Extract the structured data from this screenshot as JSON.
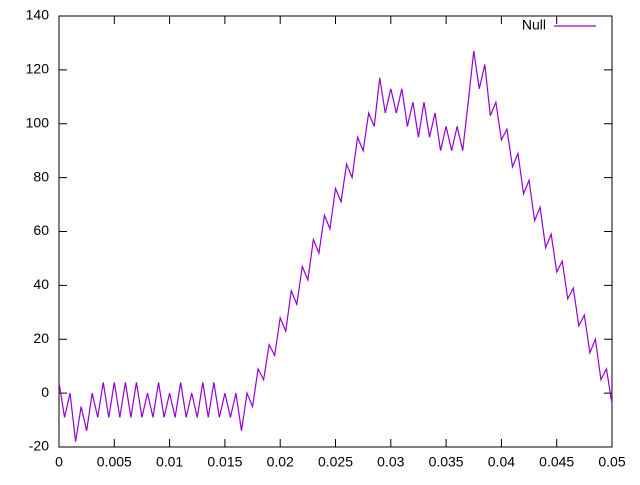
{
  "chart_data": {
    "type": "line",
    "x": [
      0,
      0.0005,
      0.001,
      0.0015,
      0.002,
      0.0025,
      0.003,
      0.0035,
      0.004,
      0.0045,
      0.005,
      0.0055,
      0.006,
      0.0065,
      0.007,
      0.0075,
      0.008,
      0.0085,
      0.009,
      0.0095,
      0.01,
      0.0105,
      0.011,
      0.0115,
      0.012,
      0.0125,
      0.013,
      0.0135,
      0.014,
      0.0145,
      0.015,
      0.0155,
      0.016,
      0.0165,
      0.017,
      0.0175,
      0.018,
      0.0185,
      0.019,
      0.0195,
      0.02,
      0.0205,
      0.021,
      0.0215,
      0.022,
      0.0225,
      0.023,
      0.0235,
      0.024,
      0.0245,
      0.025,
      0.0255,
      0.026,
      0.0265,
      0.027,
      0.0275,
      0.028,
      0.0285,
      0.029,
      0.0295,
      0.03,
      0.0305,
      0.031,
      0.0315,
      0.032,
      0.0325,
      0.033,
      0.0335,
      0.034,
      0.0345,
      0.035,
      0.0355,
      0.036,
      0.0365,
      0.037,
      0.0375,
      0.038,
      0.0385,
      0.039,
      0.0395,
      0.04,
      0.0405,
      0.041,
      0.0415,
      0.042,
      0.0425,
      0.043,
      0.0435,
      0.044,
      0.0445,
      0.045,
      0.0455,
      0.046,
      0.0465,
      0.047,
      0.0475,
      0.048,
      0.0485,
      0.049,
      0.0495,
      0.05
    ],
    "series": [
      {
        "name": "Null",
        "color": "#9400d3",
        "values": [
          4,
          -9,
          0,
          -18,
          -5,
          -14,
          0,
          -9,
          4,
          -9,
          4,
          -9,
          4,
          -9,
          4,
          -9,
          0,
          -9,
          4,
          -9,
          0,
          -9,
          4,
          -9,
          0,
          -9,
          4,
          -9,
          4,
          -9,
          0,
          -9,
          0,
          -14,
          0,
          -5,
          9,
          5,
          18,
          14,
          28,
          23,
          38,
          33,
          47,
          42,
          57,
          52,
          66,
          61,
          76,
          71,
          85,
          80,
          95,
          90,
          104,
          99,
          117,
          104,
          113,
          104,
          113,
          99,
          108,
          95,
          108,
          95,
          104,
          90,
          99,
          90,
          99,
          90,
          108,
          127,
          113,
          122,
          103,
          108,
          94,
          98,
          84,
          89,
          74,
          79,
          64,
          69,
          54,
          59,
          45,
          49,
          35,
          39,
          25,
          29,
          15,
          20,
          5,
          9,
          -4
        ]
      }
    ],
    "xlim": [
      0,
      0.05
    ],
    "xticks": [
      0,
      0.005,
      0.01,
      0.015,
      0.02,
      0.025,
      0.03,
      0.035,
      0.04,
      0.045,
      0.05
    ],
    "ylim": [
      -20,
      140
    ],
    "yticks": [
      -20,
      0,
      20,
      40,
      60,
      80,
      100,
      120,
      140
    ],
    "legend": "top-right"
  }
}
